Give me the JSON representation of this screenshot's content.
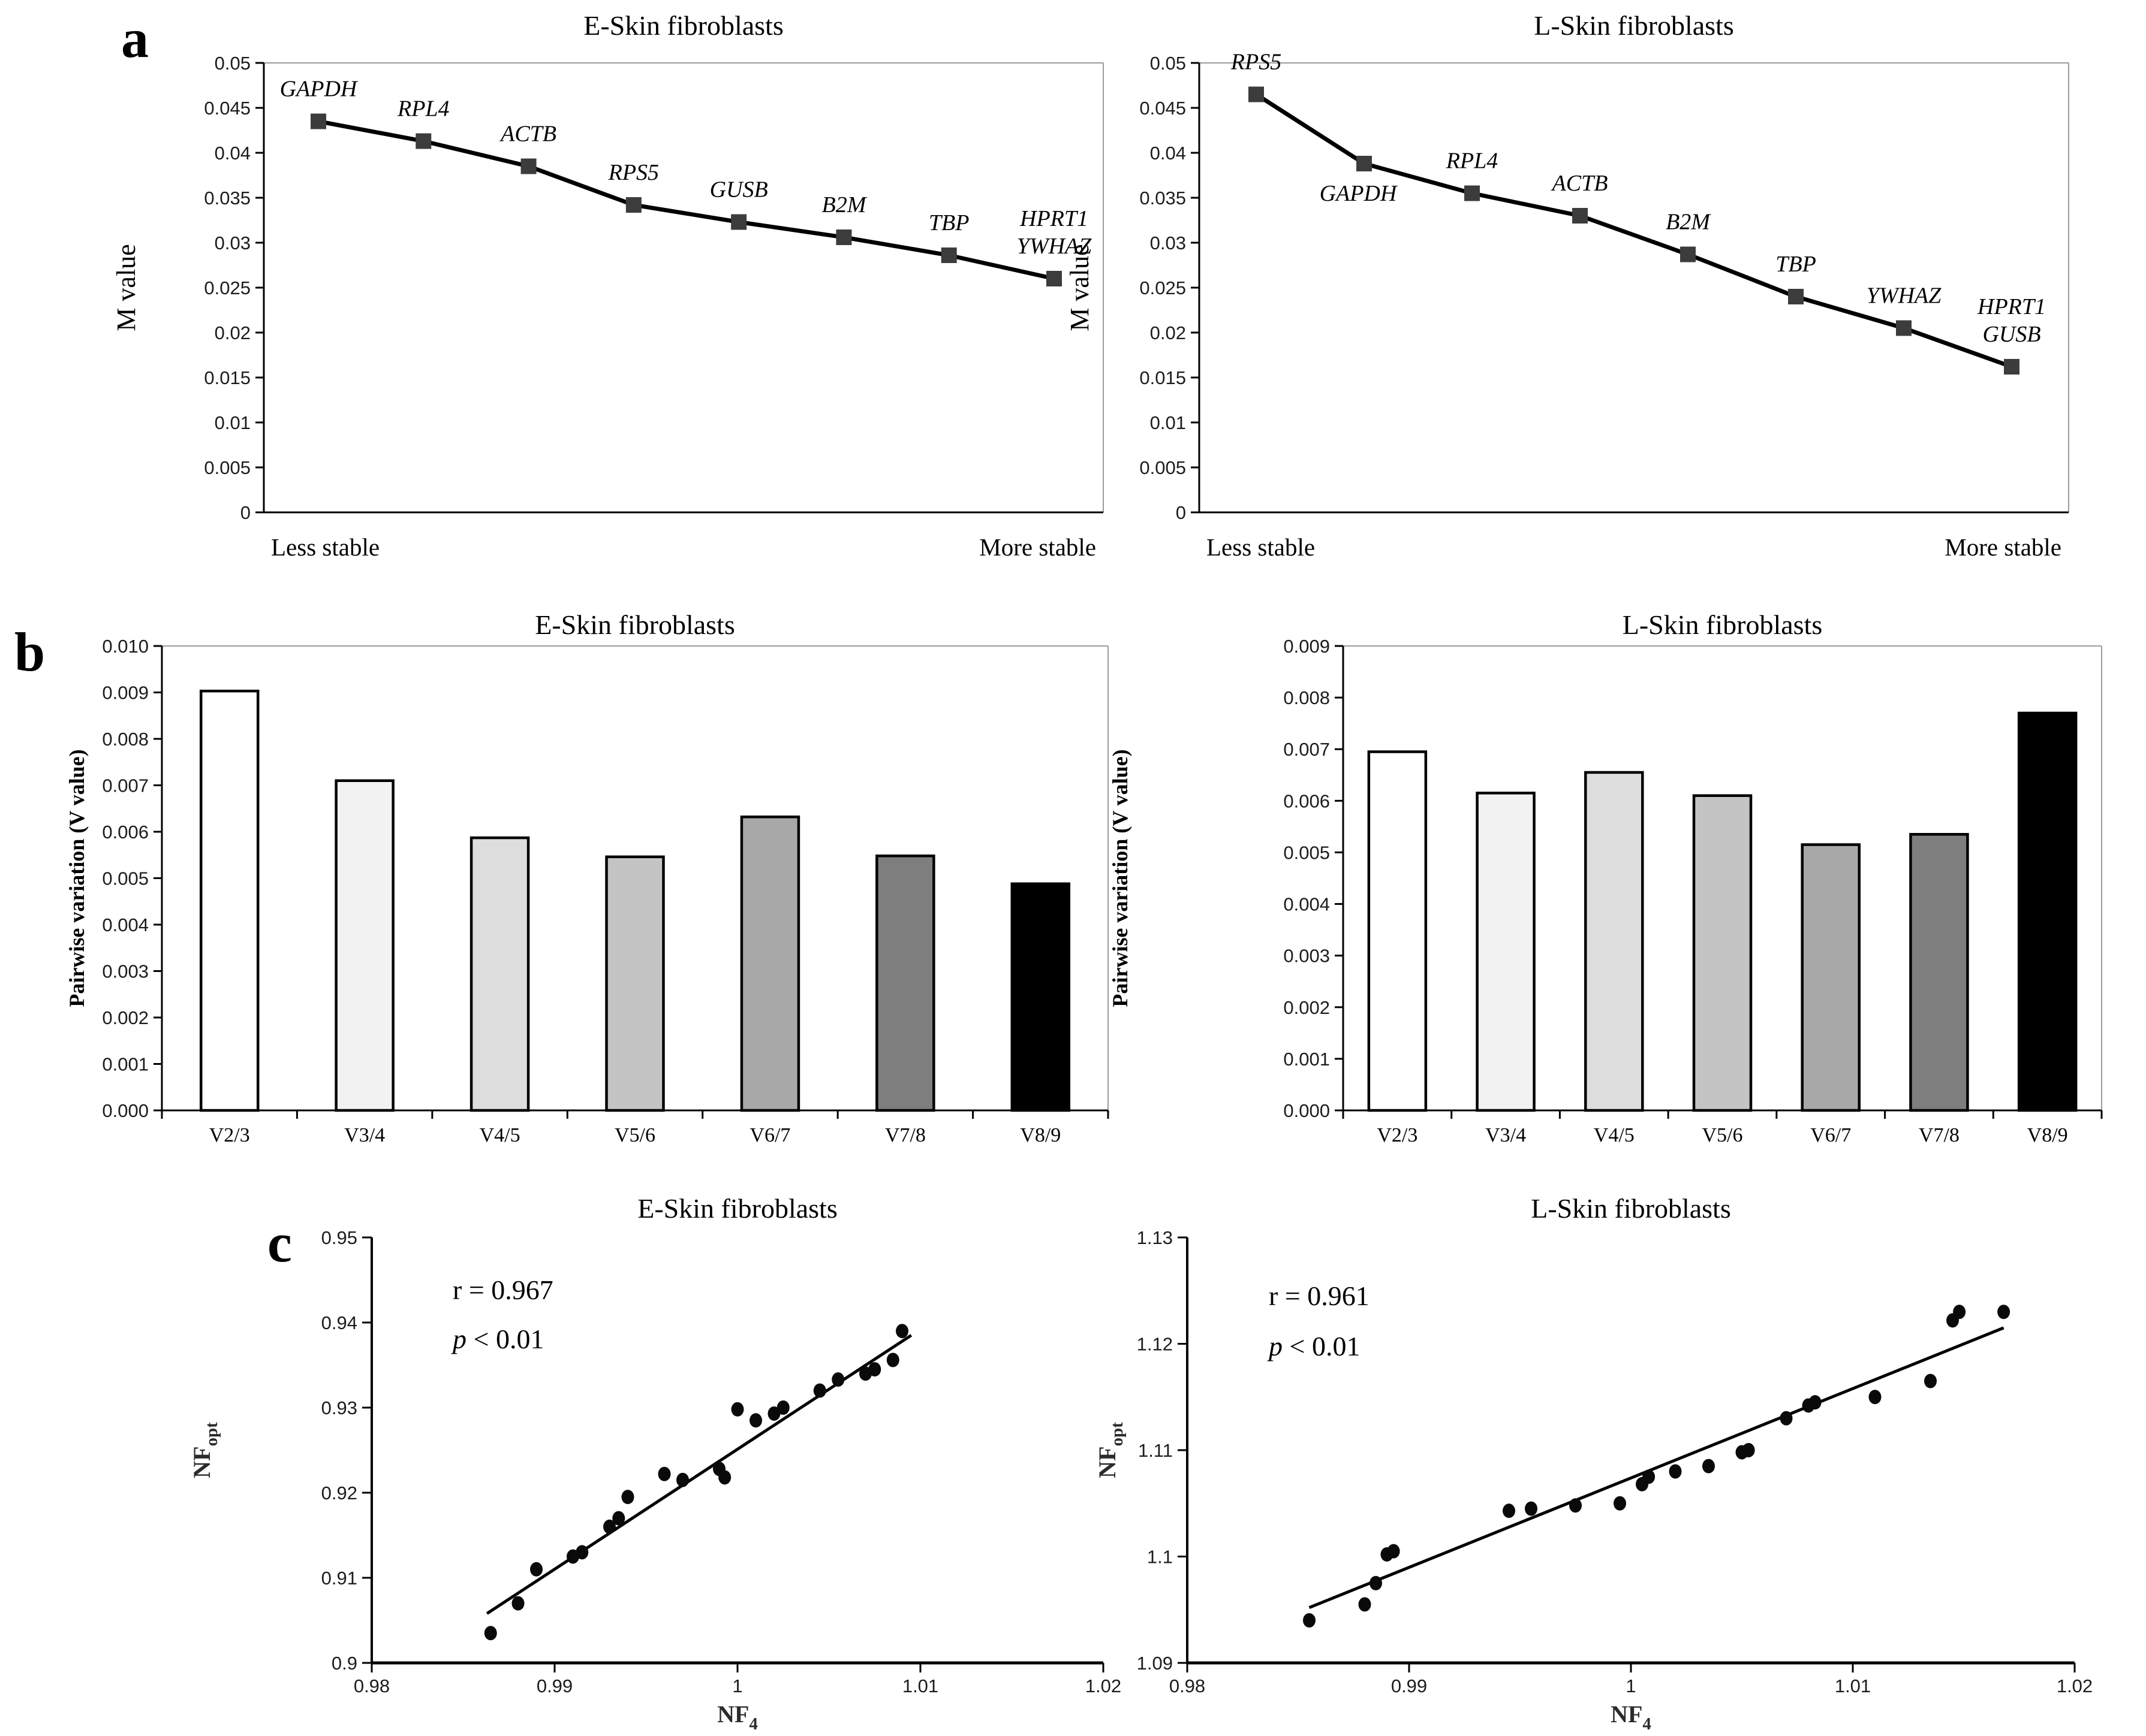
{
  "panels": {
    "a": "a",
    "b": "b",
    "c": "c"
  },
  "chart_data": [
    {
      "type": "line",
      "panel": "a",
      "title": "E-Skin fibroblasts",
      "ylabel": "M value",
      "x_axis_left_label": "Less stable",
      "x_axis_right_label": "More stable",
      "ylim": [
        0,
        0.05
      ],
      "ytick_labels": [
        "0",
        "0.005",
        "0.01",
        "0.015",
        "0.02",
        "0.025",
        "0.03",
        "0.035",
        "0.04",
        "0.045",
        "0.05"
      ],
      "points": [
        {
          "gene": [
            "GAPDH"
          ],
          "m_value": 0.0435,
          "label_pos": "above"
        },
        {
          "gene": [
            "RPL4"
          ],
          "m_value": 0.0413,
          "label_pos": "above"
        },
        {
          "gene": [
            "ACTB"
          ],
          "m_value": 0.0385,
          "label_pos": "above"
        },
        {
          "gene": [
            "RPS5"
          ],
          "m_value": 0.0342,
          "label_pos": "above"
        },
        {
          "gene": [
            "GUSB"
          ],
          "m_value": 0.0323,
          "label_pos": "above"
        },
        {
          "gene": [
            "B2M"
          ],
          "m_value": 0.0306,
          "label_pos": "above"
        },
        {
          "gene": [
            "TBP"
          ],
          "m_value": 0.0286,
          "label_pos": "above"
        },
        {
          "gene": [
            "HPRT1",
            "YWHAZ"
          ],
          "m_value": 0.026,
          "label_pos": "above"
        }
      ]
    },
    {
      "type": "line",
      "panel": "a",
      "title": "L-Skin fibroblasts",
      "ylabel": "M value",
      "x_axis_left_label": "Less stable",
      "x_axis_right_label": "More stable",
      "ylim": [
        0,
        0.05
      ],
      "ytick_labels": [
        "0",
        "0.005",
        "0.01",
        "0.015",
        "0.02",
        "0.025",
        "0.03",
        "0.035",
        "0.04",
        "0.045",
        "0.05"
      ],
      "points": [
        {
          "gene": [
            "RPS5"
          ],
          "m_value": 0.0465,
          "label_pos": "above"
        },
        {
          "gene": [
            "GAPDH"
          ],
          "m_value": 0.0388,
          "label_pos": "below"
        },
        {
          "gene": [
            "RPL4"
          ],
          "m_value": 0.0355,
          "label_pos": "above"
        },
        {
          "gene": [
            "ACTB"
          ],
          "m_value": 0.033,
          "label_pos": "above"
        },
        {
          "gene": [
            "B2M"
          ],
          "m_value": 0.0287,
          "label_pos": "above"
        },
        {
          "gene": [
            "TBP"
          ],
          "m_value": 0.024,
          "label_pos": "above"
        },
        {
          "gene": [
            "YWHAZ"
          ],
          "m_value": 0.0205,
          "label_pos": "above"
        },
        {
          "gene": [
            "HPRT1",
            "GUSB"
          ],
          "m_value": 0.0162,
          "label_pos": "above"
        }
      ]
    },
    {
      "type": "bar",
      "panel": "b",
      "title": "E-Skin fibroblasts",
      "ylabel": "Pairwise variation (V value)",
      "ylim": [
        0,
        0.01
      ],
      "ytick_labels": [
        "0.000",
        "0.001",
        "0.002",
        "0.003",
        "0.004",
        "0.005",
        "0.006",
        "0.007",
        "0.008",
        "0.009",
        "0.010"
      ],
      "categories": [
        "V2/3",
        "V3/4",
        "V4/5",
        "V5/6",
        "V6/7",
        "V7/8",
        "V8/9"
      ],
      "values": [
        0.00903,
        0.0071,
        0.00587,
        0.00546,
        0.00632,
        0.00548,
        0.00488
      ],
      "bar_colors": [
        "#ffffff",
        "#f2f2f2",
        "#dddddd",
        "#c4c4c4",
        "#a8a8a8",
        "#7e7e7e",
        "#000000"
      ]
    },
    {
      "type": "bar",
      "panel": "b",
      "title": "L-Skin fibroblasts",
      "ylabel": "Pairwise variation (V value)",
      "ylim": [
        0,
        0.009
      ],
      "ytick_labels": [
        "0.000",
        "0.001",
        "0.002",
        "0.003",
        "0.004",
        "0.005",
        "0.006",
        "0.007",
        "0.008",
        "0.009"
      ],
      "categories": [
        "V2/3",
        "V3/4",
        "V4/5",
        "V5/6",
        "V6/7",
        "V7/8",
        "V8/9"
      ],
      "values": [
        0.00695,
        0.00615,
        0.00655,
        0.0061,
        0.00515,
        0.00535,
        0.0077
      ],
      "bar_colors": [
        "#ffffff",
        "#f2f2f2",
        "#dddddd",
        "#c4c4c4",
        "#a8a8a8",
        "#7e7e7e",
        "#000000"
      ]
    },
    {
      "type": "scatter",
      "panel": "c",
      "title": "E-Skin fibroblasts",
      "xlabel_base": "NF",
      "xlabel_sub": "4",
      "ylabel_base": "NF",
      "ylabel_sub": "opt",
      "correlation": "r = 0.967",
      "p_value": "p < 0.01",
      "xlim": [
        0.98,
        1.02
      ],
      "ylim": [
        0.9,
        0.95
      ],
      "xtick_labels": [
        "0.98",
        "0.99",
        "1",
        "1.01",
        "1.02"
      ],
      "ytick_labels": [
        "0.9",
        "0.91",
        "0.92",
        "0.93",
        "0.94",
        "0.95"
      ],
      "points": [
        [
          0.9865,
          0.9035
        ],
        [
          0.988,
          0.907
        ],
        [
          0.989,
          0.911
        ],
        [
          0.991,
          0.9125
        ],
        [
          0.9915,
          0.913
        ],
        [
          0.993,
          0.916
        ],
        [
          0.9935,
          0.917
        ],
        [
          0.994,
          0.9195
        ],
        [
          0.996,
          0.9222
        ],
        [
          0.997,
          0.9215
        ],
        [
          0.999,
          0.9228
        ],
        [
          0.9993,
          0.9218
        ],
        [
          1.0,
          0.9298
        ],
        [
          1.001,
          0.9285
        ],
        [
          1.002,
          0.9293
        ],
        [
          1.0025,
          0.93
        ],
        [
          1.0045,
          0.932
        ],
        [
          1.0055,
          0.9333
        ],
        [
          1.007,
          0.934
        ],
        [
          1.0075,
          0.9345
        ],
        [
          1.0085,
          0.9356
        ],
        [
          1.009,
          0.939
        ]
      ],
      "trendline": [
        [
          0.9863,
          0.9058
        ],
        [
          1.0095,
          0.9385
        ]
      ]
    },
    {
      "type": "scatter",
      "panel": "c",
      "title": "L-Skin fibroblasts",
      "xlabel_base": "NF",
      "xlabel_sub": "4",
      "ylabel_base": "NF",
      "ylabel_sub": "opt",
      "correlation": "r = 0.961",
      "p_value": "p < 0.01",
      "xlim": [
        0.98,
        1.02
      ],
      "ylim": [
        1.09,
        1.13
      ],
      "xtick_labels": [
        "0.98",
        "0.99",
        "1",
        "1.01",
        "1.02"
      ],
      "ytick_labels": [
        "1.09",
        "1.1",
        "1.11",
        "1.12",
        "1.13"
      ],
      "points": [
        [
          0.9855,
          1.094
        ],
        [
          0.988,
          1.0955
        ],
        [
          0.9885,
          1.0975
        ],
        [
          0.989,
          1.1002
        ],
        [
          0.9893,
          1.1005
        ],
        [
          0.9945,
          1.1043
        ],
        [
          0.9955,
          1.1045
        ],
        [
          0.9975,
          1.1048
        ],
        [
          0.9995,
          1.105
        ],
        [
          1.0005,
          1.1068
        ],
        [
          1.0008,
          1.1075
        ],
        [
          1.002,
          1.108
        ],
        [
          1.0035,
          1.1085
        ],
        [
          1.005,
          1.1098
        ],
        [
          1.0053,
          1.11
        ],
        [
          1.007,
          1.113
        ],
        [
          1.008,
          1.1142
        ],
        [
          1.0083,
          1.1145
        ],
        [
          1.011,
          1.115
        ],
        [
          1.0135,
          1.1165
        ],
        [
          1.0145,
          1.1222
        ],
        [
          1.0148,
          1.123
        ],
        [
          1.0168,
          1.123
        ]
      ],
      "trendline": [
        [
          0.9855,
          1.0952
        ],
        [
          1.0168,
          1.1215
        ]
      ]
    }
  ]
}
